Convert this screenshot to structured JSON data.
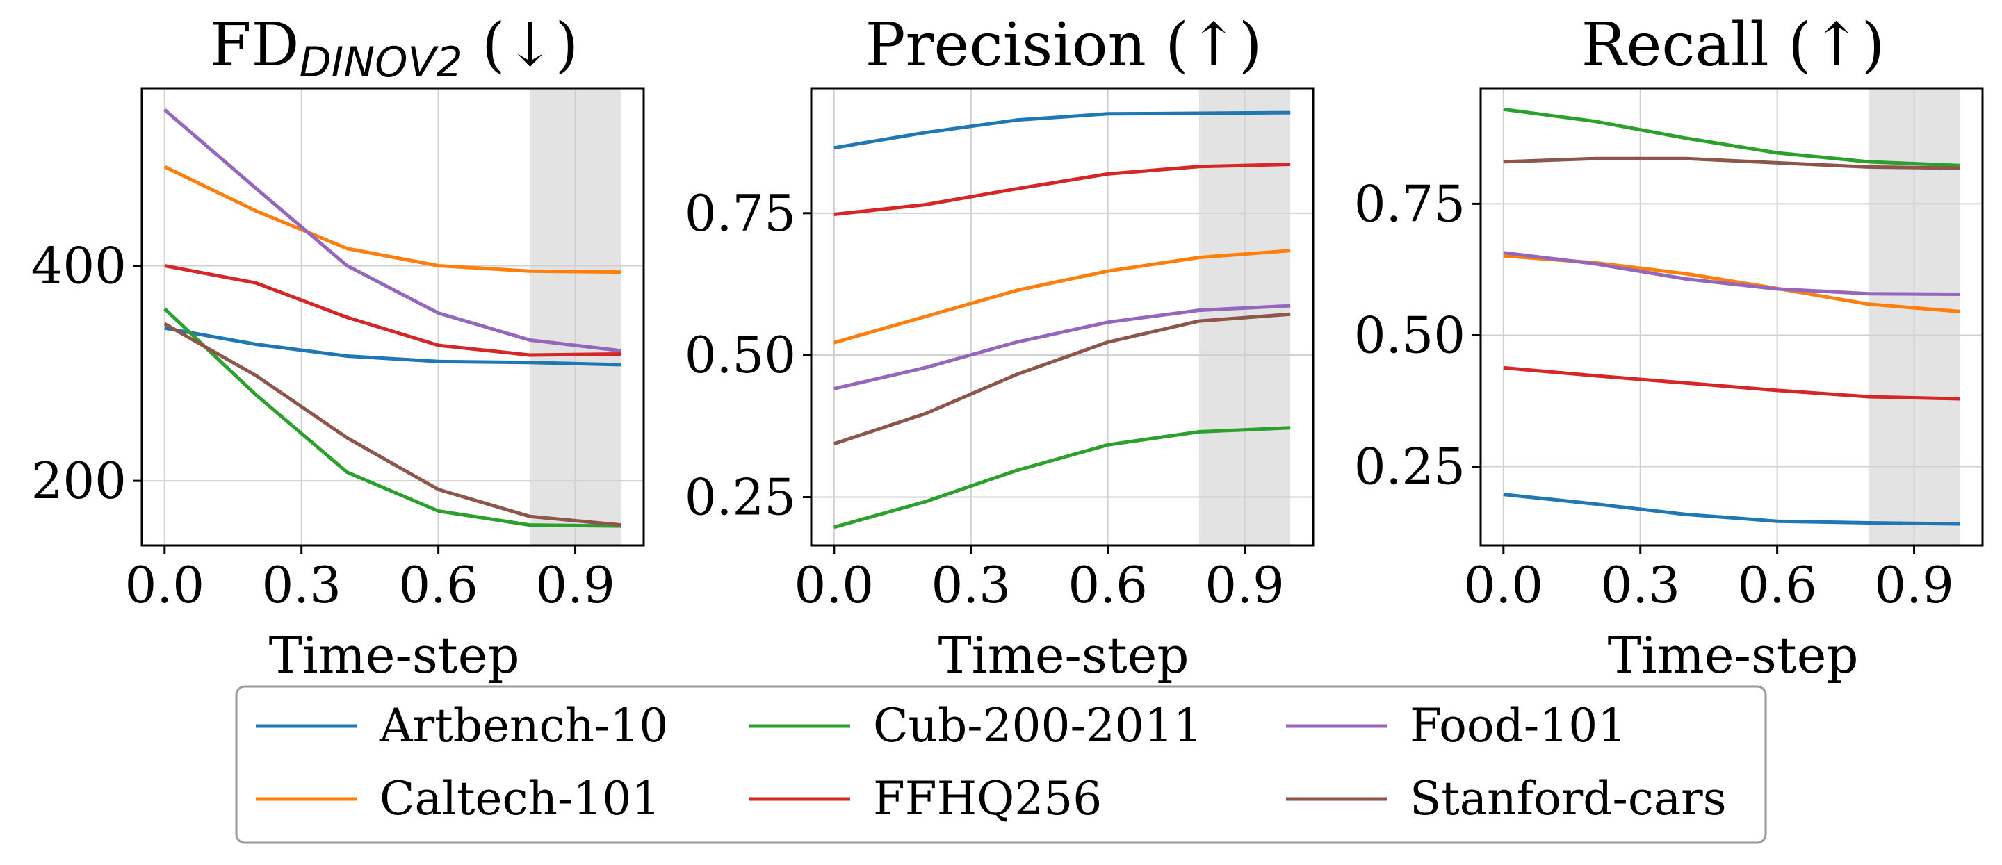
{
  "colors": {
    "Artbench-10": "#1f77b4",
    "Caltech-101": "#ff7f0e",
    "Cub-200-2011": "#2ca02c",
    "FFHQ256": "#d62728",
    "Food-101": "#9467bd",
    "Stanford-cars": "#8c564b",
    "shade": "#d9d9d9",
    "grid": "#d0d0d0"
  },
  "legend": {
    "entries": [
      "Artbench-10",
      "Cub-200-2011",
      "Food-101",
      "Caltech-101",
      "FFHQ256",
      "Stanford-cars"
    ]
  },
  "chart_data": [
    {
      "type": "line",
      "title_main": "FD",
      "title_sub": "DINOV2",
      "title_suffix": " (↓)",
      "xlabel": "Time-step",
      "ylabel": "",
      "x": [
        0.0,
        0.2,
        0.4,
        0.6,
        0.8,
        1.0
      ],
      "xticks": [
        0.0,
        0.3,
        0.6,
        0.9
      ],
      "xtick_labels": [
        "0.0",
        "0.3",
        "0.6",
        "0.9"
      ],
      "xlim": [
        -0.05,
        1.05
      ],
      "ylim": [
        140,
        565
      ],
      "yticks": [
        200,
        400
      ],
      "ytick_labels": [
        "200",
        "400"
      ],
      "shaded_x": [
        0.8,
        1.0
      ],
      "series": [
        {
          "name": "Artbench-10",
          "values": [
            342,
            327,
            316,
            311,
            310,
            308
          ]
        },
        {
          "name": "Caltech-101",
          "values": [
            492,
            451,
            416,
            400,
            395,
            394
          ]
        },
        {
          "name": "Cub-200-2011",
          "values": [
            360,
            280,
            208,
            172,
            159,
            158
          ]
        },
        {
          "name": "FFHQ256",
          "values": [
            400,
            384,
            352,
            326,
            317,
            318
          ]
        },
        {
          "name": "Food-101",
          "values": [
            545,
            472,
            400,
            356,
            331,
            321
          ]
        },
        {
          "name": "Stanford-cars",
          "values": [
            346,
            298,
            240,
            192,
            167,
            159
          ]
        }
      ]
    },
    {
      "type": "line",
      "title_main": "Precision (↑)",
      "xlabel": "Time-step",
      "ylabel": "",
      "x": [
        0.0,
        0.2,
        0.4,
        0.6,
        0.8,
        1.0
      ],
      "xticks": [
        0.0,
        0.3,
        0.6,
        0.9
      ],
      "xtick_labels": [
        "0.0",
        "0.3",
        "0.6",
        "0.9"
      ],
      "xlim": [
        -0.05,
        1.05
      ],
      "ylim": [
        0.165,
        0.97
      ],
      "yticks": [
        0.25,
        0.5,
        0.75
      ],
      "ytick_labels": [
        "0.25",
        "0.50",
        "0.75"
      ],
      "shaded_x": [
        0.8,
        1.0
      ],
      "series": [
        {
          "name": "Artbench-10",
          "values": [
            0.865,
            0.892,
            0.914,
            0.925,
            0.926,
            0.927
          ]
        },
        {
          "name": "Caltech-101",
          "values": [
            0.522,
            0.568,
            0.614,
            0.648,
            0.672,
            0.684
          ]
        },
        {
          "name": "Cub-200-2011",
          "values": [
            0.197,
            0.242,
            0.297,
            0.342,
            0.365,
            0.372
          ]
        },
        {
          "name": "FFHQ256",
          "values": [
            0.748,
            0.765,
            0.793,
            0.819,
            0.832,
            0.836
          ]
        },
        {
          "name": "Food-101",
          "values": [
            0.441,
            0.478,
            0.523,
            0.558,
            0.579,
            0.587
          ]
        },
        {
          "name": "Stanford-cars",
          "values": [
            0.344,
            0.397,
            0.466,
            0.523,
            0.56,
            0.572
          ]
        }
      ]
    },
    {
      "type": "line",
      "title_main": "Recall (↑)",
      "xlabel": "Time-step",
      "ylabel": "",
      "x": [
        0.0,
        0.2,
        0.4,
        0.6,
        0.8,
        1.0
      ],
      "xticks": [
        0.0,
        0.3,
        0.6,
        0.9
      ],
      "xtick_labels": [
        "0.0",
        "0.3",
        "0.6",
        "0.9"
      ],
      "xlim": [
        -0.05,
        1.05
      ],
      "ylim": [
        0.1,
        0.97
      ],
      "yticks": [
        0.25,
        0.5,
        0.75
      ],
      "ytick_labels": [
        "0.25",
        "0.50",
        "0.75"
      ],
      "shaded_x": [
        0.8,
        1.0
      ],
      "series": [
        {
          "name": "Artbench-10",
          "values": [
            0.197,
            0.179,
            0.159,
            0.146,
            0.143,
            0.141
          ]
        },
        {
          "name": "Caltech-101",
          "values": [
            0.651,
            0.638,
            0.617,
            0.589,
            0.559,
            0.545
          ]
        },
        {
          "name": "Cub-200-2011",
          "values": [
            0.93,
            0.907,
            0.875,
            0.847,
            0.83,
            0.823
          ]
        },
        {
          "name": "FFHQ256",
          "values": [
            0.438,
            0.423,
            0.409,
            0.395,
            0.383,
            0.379
          ]
        },
        {
          "name": "Food-101",
          "values": [
            0.657,
            0.636,
            0.607,
            0.588,
            0.579,
            0.578
          ]
        },
        {
          "name": "Stanford-cars",
          "values": [
            0.83,
            0.836,
            0.836,
            0.828,
            0.82,
            0.818
          ]
        }
      ]
    }
  ]
}
